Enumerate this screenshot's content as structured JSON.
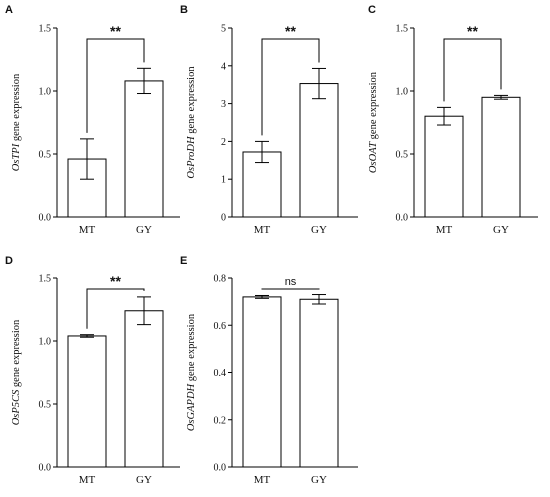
{
  "chart_data": [
    {
      "panel": "A",
      "type": "bar",
      "ylabel_gene": "OsTPI",
      "ylabel_rest": " gene expression",
      "categories": [
        "MT",
        "GY"
      ],
      "values": [
        0.46,
        1.08
      ],
      "errors": [
        0.16,
        0.1
      ],
      "ylim": [
        0,
        1.5
      ],
      "yticks": [
        "0.0",
        "0.5",
        "1.0",
        "1.5"
      ],
      "significance": "**",
      "colors": {
        "bar_fill": "#ffffff",
        "stroke": "#000000"
      }
    },
    {
      "panel": "B",
      "type": "bar",
      "ylabel_gene": "OsProDH",
      "ylabel_rest": " gene expression",
      "categories": [
        "MT",
        "GY"
      ],
      "values": [
        1.72,
        3.53
      ],
      "errors": [
        0.28,
        0.4
      ],
      "ylim": [
        0,
        5
      ],
      "yticks": [
        "0",
        "1",
        "2",
        "3",
        "4",
        "5"
      ],
      "significance": "**",
      "colors": {
        "bar_fill": "#ffffff",
        "stroke": "#000000"
      }
    },
    {
      "panel": "C",
      "type": "bar",
      "ylabel_gene": "OsOAT",
      "ylabel_rest": " gene expression",
      "categories": [
        "MT",
        "GY"
      ],
      "values": [
        0.8,
        0.95
      ],
      "errors": [
        0.07,
        0.015
      ],
      "ylim": [
        0,
        1.5
      ],
      "yticks": [
        "0.0",
        "0.5",
        "1.0",
        "1.5"
      ],
      "significance": "**",
      "colors": {
        "bar_fill": "#ffffff",
        "stroke": "#000000"
      }
    },
    {
      "panel": "D",
      "type": "bar",
      "ylabel_gene": "OsP5CS",
      "ylabel_rest": " gene expression",
      "categories": [
        "MT",
        "GY"
      ],
      "values": [
        1.04,
        1.24
      ],
      "errors": [
        0.01,
        0.11
      ],
      "ylim": [
        0,
        1.5
      ],
      "yticks": [
        "0.0",
        "0.5",
        "1.0",
        "1.5"
      ],
      "significance": "**",
      "colors": {
        "bar_fill": "#ffffff",
        "stroke": "#000000"
      }
    },
    {
      "panel": "E",
      "type": "bar",
      "ylabel_gene": "OsGAPDH",
      "ylabel_rest": " gene expression",
      "categories": [
        "MT",
        "GY"
      ],
      "values": [
        0.72,
        0.71
      ],
      "errors": [
        0.006,
        0.02
      ],
      "ylim": [
        0,
        0.8
      ],
      "yticks": [
        "0.0",
        "0.2",
        "0.4",
        "0.6",
        "0.8"
      ],
      "significance": "ns",
      "colors": {
        "bar_fill": "#ffffff",
        "stroke": "#000000"
      }
    }
  ]
}
